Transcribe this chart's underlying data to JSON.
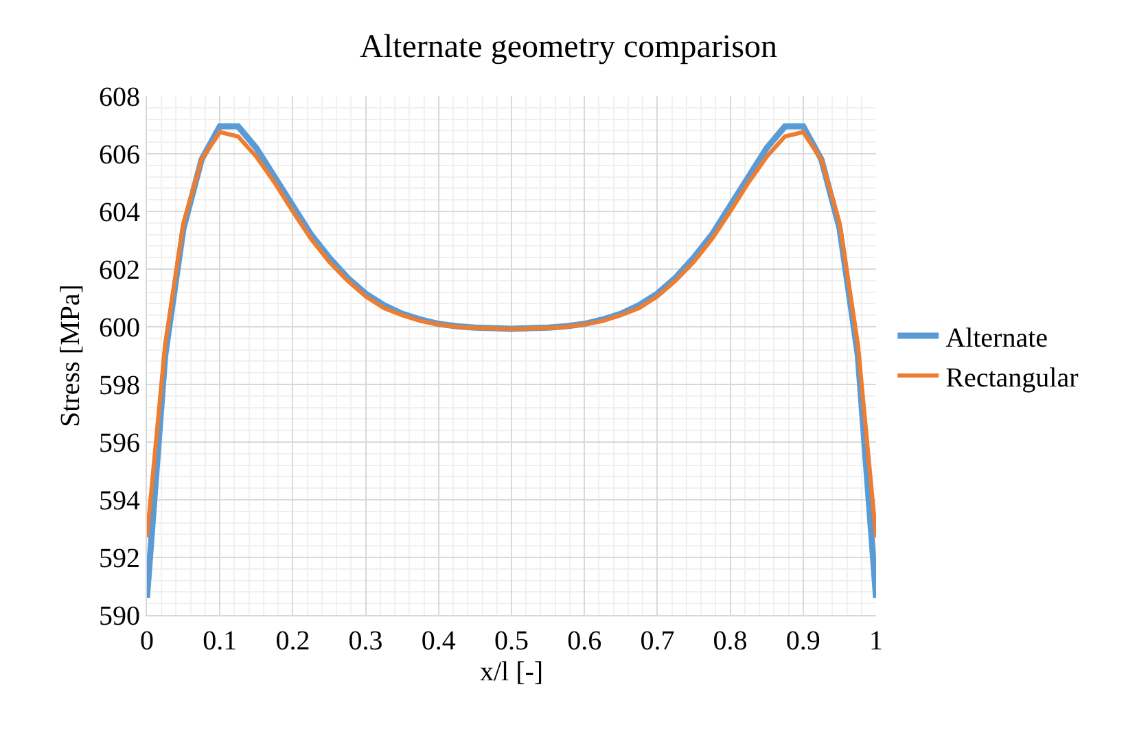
{
  "chart_data": {
    "type": "line",
    "title": "Alternate geometry comparison",
    "xlabel": "x/l [-]",
    "ylabel": "Stress [MPa]",
    "x": [
      0,
      0.025,
      0.05,
      0.075,
      0.1,
      0.125,
      0.15,
      0.175,
      0.2,
      0.225,
      0.25,
      0.275,
      0.3,
      0.325,
      0.35,
      0.375,
      0.4,
      0.425,
      0.45,
      0.475,
      0.5,
      0.525,
      0.55,
      0.575,
      0.6,
      0.625,
      0.65,
      0.675,
      0.7,
      0.725,
      0.75,
      0.775,
      0.8,
      0.825,
      0.85,
      0.875,
      0.9,
      0.925,
      0.95,
      0.975,
      1
    ],
    "series": [
      {
        "name": "Alternate",
        "color": "#5b9bd5",
        "values": [
          590.6,
          599.0,
          603.4,
          605.8,
          606.95,
          606.95,
          606.2,
          605.2,
          604.2,
          603.2,
          602.4,
          601.7,
          601.15,
          600.75,
          600.45,
          600.25,
          600.1,
          600.02,
          599.97,
          599.95,
          599.93,
          599.95,
          599.97,
          600.02,
          600.1,
          600.25,
          600.45,
          600.75,
          601.15,
          601.7,
          602.4,
          603.2,
          604.2,
          605.2,
          606.2,
          606.95,
          606.95,
          605.8,
          603.4,
          599.0,
          590.6
        ]
      },
      {
        "name": "Rectangular",
        "color": "#ed7d31",
        "values": [
          592.7,
          599.4,
          603.6,
          605.8,
          606.75,
          606.6,
          605.9,
          605.0,
          604.0,
          603.05,
          602.25,
          601.6,
          601.05,
          600.65,
          600.4,
          600.2,
          600.08,
          600.0,
          599.96,
          599.94,
          599.93,
          599.94,
          599.96,
          600.0,
          600.08,
          600.2,
          600.4,
          600.65,
          601.05,
          601.6,
          602.25,
          603.05,
          604.0,
          605.0,
          605.9,
          606.6,
          606.75,
          605.8,
          603.6,
          599.4,
          592.7
        ]
      }
    ],
    "xlim": [
      0,
      1
    ],
    "xticks": [
      {
        "value": 0,
        "label": "0"
      },
      0.1,
      0.2,
      0.3,
      0.4,
      0.5,
      0.6,
      0.7,
      0.8,
      0.9,
      1
    ],
    "ylim": [
      590,
      608
    ],
    "yticks": [
      590,
      592,
      594,
      596,
      598,
      600,
      602,
      604,
      606,
      608
    ],
    "grid": true,
    "legend": "right",
    "marker": "none",
    "line_style": "solid"
  }
}
